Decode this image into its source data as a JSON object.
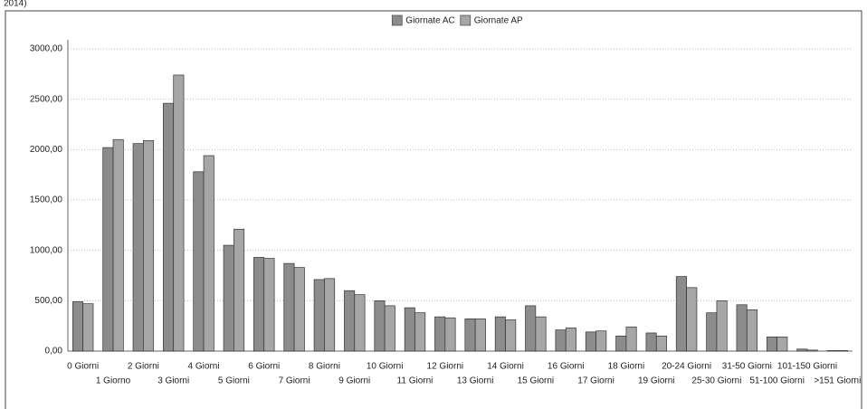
{
  "heading": "2014)",
  "chart_data": {
    "type": "bar",
    "categories": [
      "0 Giorni",
      "1 Giorno",
      "2 Giorni",
      "3 Giorni",
      "4 Giorni",
      "5 Giorni",
      "6 Giorni",
      "7 Giorni",
      "8 Giorni",
      "9 Giorni",
      "10 Giorni",
      "11 Giorni",
      "12 Giorni",
      "13 Giorni",
      "14 Giorni",
      "15 Giorni",
      "16 Giorni",
      "17 Giorni",
      "18 Giorni",
      "19 Giorni",
      "20-24 Giorni",
      "25-30 Giorni",
      "31-50 Giorni",
      "51-100 Giorni",
      "101-150 Giorni",
      ">151 Giorni"
    ],
    "series": [
      {
        "name": "Giornate AC",
        "color": "#8c8c8c",
        "values": [
          490,
          2020,
          2060,
          2460,
          1780,
          1050,
          930,
          870,
          710,
          600,
          500,
          430,
          340,
          320,
          340,
          450,
          210,
          190,
          150,
          180,
          740,
          380,
          460,
          140,
          20,
          5
        ]
      },
      {
        "name": "Giornate AP",
        "color": "#a6a6a6",
        "values": [
          470,
          2100,
          2090,
          2740,
          1940,
          1210,
          920,
          830,
          720,
          560,
          450,
          380,
          330,
          320,
          310,
          340,
          230,
          200,
          240,
          150,
          630,
          500,
          410,
          140,
          10,
          5
        ]
      }
    ],
    "ylim": [
      0,
      3000
    ],
    "yticks": [
      {
        "value": 0,
        "label": "0,00"
      },
      {
        "value": 500,
        "label": "500,00"
      },
      {
        "value": 1000,
        "label": "1000,00"
      },
      {
        "value": 1500,
        "label": "1500,00"
      },
      {
        "value": 2000,
        "label": "2000,00"
      },
      {
        "value": 2500,
        "label": "2500,00"
      },
      {
        "value": 3000,
        "label": "3000,00"
      }
    ],
    "grid": true,
    "legend": "top"
  }
}
